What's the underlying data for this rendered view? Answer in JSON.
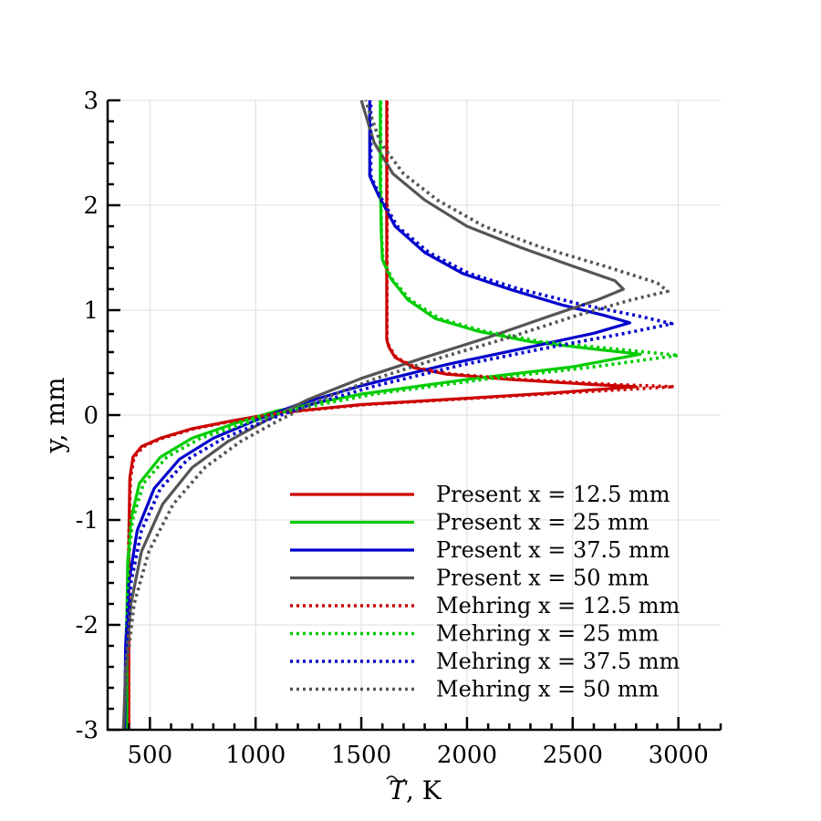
{
  "chart_data": {
    "type": "line",
    "title": "",
    "xlabel": "T̃, K",
    "xlabel_base": "T",
    "xlabel_unit": ", K",
    "ylabel": "y, mm",
    "xlim": [
      300,
      3200
    ],
    "ylim": [
      -3,
      3
    ],
    "xticks": [
      500,
      1000,
      1500,
      2000,
      2500,
      3000
    ],
    "xtick_labels": [
      "500",
      "1000",
      "1500",
      "2000",
      "2500",
      "3000"
    ],
    "yticks": [
      -3,
      -2,
      -1,
      0,
      1,
      2,
      3
    ],
    "ytick_labels": [
      "-3",
      "-2",
      "-1",
      "0",
      "1",
      "2",
      "3"
    ],
    "grid": true,
    "legend_position": "bottom-right",
    "series": [
      {
        "name": "Present x = 12.5 mm",
        "color": "#cc0000",
        "style": "solid",
        "points": [
          [
            400,
            -3
          ],
          [
            400,
            -2
          ],
          [
            400,
            -1.2
          ],
          [
            405,
            -0.6
          ],
          [
            420,
            -0.4
          ],
          [
            460,
            -0.3
          ],
          [
            550,
            -0.22
          ],
          [
            700,
            -0.13
          ],
          [
            900,
            -0.05
          ],
          [
            1100,
            0.02
          ],
          [
            1500,
            0.1
          ],
          [
            2000,
            0.16
          ],
          [
            2400,
            0.21
          ],
          [
            2800,
            0.27
          ],
          [
            2600,
            0.29
          ],
          [
            2200,
            0.34
          ],
          [
            1900,
            0.39
          ],
          [
            1750,
            0.45
          ],
          [
            1660,
            0.55
          ],
          [
            1630,
            0.65
          ],
          [
            1620,
            0.72
          ],
          [
            1620,
            1
          ],
          [
            1620,
            2
          ],
          [
            1620,
            3
          ]
        ]
      },
      {
        "name": "Present x = 25 mm",
        "color": "#00cc00",
        "style": "solid",
        "points": [
          [
            390,
            -3
          ],
          [
            390,
            -2
          ],
          [
            395,
            -1.4
          ],
          [
            410,
            -1
          ],
          [
            450,
            -0.65
          ],
          [
            550,
            -0.4
          ],
          [
            700,
            -0.22
          ],
          [
            900,
            -0.08
          ],
          [
            1100,
            0.04
          ],
          [
            1500,
            0.2
          ],
          [
            2000,
            0.34
          ],
          [
            2500,
            0.46
          ],
          [
            2820,
            0.58
          ],
          [
            2600,
            0.63
          ],
          [
            2300,
            0.7
          ],
          [
            2050,
            0.8
          ],
          [
            1850,
            0.92
          ],
          [
            1720,
            1.1
          ],
          [
            1640,
            1.3
          ],
          [
            1600,
            1.48
          ],
          [
            1595,
            1.7
          ],
          [
            1590,
            2.2
          ],
          [
            1590,
            3
          ]
        ]
      },
      {
        "name": "Present x = 37.5 mm",
        "color": "#0000cc",
        "style": "solid",
        "points": [
          [
            380,
            -3
          ],
          [
            385,
            -2.2
          ],
          [
            400,
            -1.6
          ],
          [
            440,
            -1.1
          ],
          [
            520,
            -0.7
          ],
          [
            640,
            -0.42
          ],
          [
            800,
            -0.22
          ],
          [
            1000,
            -0.05
          ],
          [
            1200,
            0.1
          ],
          [
            1500,
            0.28
          ],
          [
            1900,
            0.48
          ],
          [
            2300,
            0.65
          ],
          [
            2600,
            0.78
          ],
          [
            2770,
            0.88
          ],
          [
            2650,
            0.95
          ],
          [
            2450,
            1.05
          ],
          [
            2200,
            1.2
          ],
          [
            1980,
            1.35
          ],
          [
            1800,
            1.55
          ],
          [
            1660,
            1.8
          ],
          [
            1580,
            2.1
          ],
          [
            1540,
            2.28
          ],
          [
            1540,
            2.5
          ],
          [
            1540,
            3
          ]
        ]
      },
      {
        "name": "Present x = 50 mm",
        "color": "#555555",
        "style": "solid",
        "points": [
          [
            375,
            -3
          ],
          [
            385,
            -2.4
          ],
          [
            410,
            -1.8
          ],
          [
            460,
            -1.3
          ],
          [
            560,
            -0.85
          ],
          [
            700,
            -0.5
          ],
          [
            870,
            -0.25
          ],
          [
            1050,
            -0.05
          ],
          [
            1250,
            0.15
          ],
          [
            1500,
            0.35
          ],
          [
            1800,
            0.55
          ],
          [
            2100,
            0.74
          ],
          [
            2400,
            0.95
          ],
          [
            2620,
            1.1
          ],
          [
            2740,
            1.2
          ],
          [
            2700,
            1.28
          ],
          [
            2500,
            1.42
          ],
          [
            2250,
            1.6
          ],
          [
            2000,
            1.8
          ],
          [
            1800,
            2.05
          ],
          [
            1650,
            2.3
          ],
          [
            1560,
            2.6
          ],
          [
            1500,
            3
          ]
        ]
      },
      {
        "name": "Mehring x = 12.5 mm",
        "color": "#cc0000",
        "style": "dotted",
        "points": [
          [
            400,
            -3
          ],
          [
            400,
            -2
          ],
          [
            400,
            -1.2
          ],
          [
            408,
            -0.6
          ],
          [
            425,
            -0.4
          ],
          [
            470,
            -0.3
          ],
          [
            560,
            -0.22
          ],
          [
            710,
            -0.13
          ],
          [
            910,
            -0.05
          ],
          [
            1110,
            0.02
          ],
          [
            1520,
            0.1
          ],
          [
            2030,
            0.16
          ],
          [
            2450,
            0.21
          ],
          [
            2980,
            0.27
          ],
          [
            2700,
            0.29
          ],
          [
            2250,
            0.34
          ],
          [
            1930,
            0.39
          ],
          [
            1760,
            0.45
          ],
          [
            1665,
            0.55
          ],
          [
            1632,
            0.65
          ],
          [
            1622,
            0.72
          ],
          [
            1622,
            1
          ],
          [
            1622,
            2
          ],
          [
            1622,
            3
          ]
        ]
      },
      {
        "name": "Mehring x = 25 mm",
        "color": "#00cc00",
        "style": "dotted",
        "points": [
          [
            390,
            -3
          ],
          [
            392,
            -2
          ],
          [
            398,
            -1.4
          ],
          [
            418,
            -1
          ],
          [
            470,
            -0.65
          ],
          [
            580,
            -0.4
          ],
          [
            740,
            -0.22
          ],
          [
            950,
            -0.08
          ],
          [
            1150,
            0.04
          ],
          [
            1560,
            0.2
          ],
          [
            2080,
            0.34
          ],
          [
            2600,
            0.46
          ],
          [
            3000,
            0.57
          ],
          [
            2700,
            0.63
          ],
          [
            2350,
            0.7
          ],
          [
            2080,
            0.8
          ],
          [
            1870,
            0.92
          ],
          [
            1730,
            1.1
          ],
          [
            1645,
            1.3
          ],
          [
            1602,
            1.48
          ],
          [
            1596,
            1.7
          ],
          [
            1592,
            2.2
          ],
          [
            1592,
            3
          ]
        ]
      },
      {
        "name": "Mehring x = 37.5 mm",
        "color": "#0000cc",
        "style": "dotted",
        "points": [
          [
            380,
            -3
          ],
          [
            390,
            -2.2
          ],
          [
            410,
            -1.6
          ],
          [
            460,
            -1.1
          ],
          [
            550,
            -0.7
          ],
          [
            680,
            -0.42
          ],
          [
            850,
            -0.22
          ],
          [
            1050,
            -0.05
          ],
          [
            1260,
            0.1
          ],
          [
            1570,
            0.28
          ],
          [
            1980,
            0.48
          ],
          [
            2400,
            0.65
          ],
          [
            2750,
            0.78
          ],
          [
            2970,
            0.87
          ],
          [
            2800,
            0.95
          ],
          [
            2550,
            1.05
          ],
          [
            2250,
            1.2
          ],
          [
            2010,
            1.35
          ],
          [
            1820,
            1.55
          ],
          [
            1670,
            1.8
          ],
          [
            1585,
            2.1
          ],
          [
            1545,
            2.28
          ],
          [
            1545,
            3
          ]
        ]
      },
      {
        "name": "Mehring x = 50 mm",
        "color": "#555555",
        "style": "dotted",
        "points": [
          [
            375,
            -3
          ],
          [
            390,
            -2.4
          ],
          [
            425,
            -1.8
          ],
          [
            495,
            -1.3
          ],
          [
            610,
            -0.85
          ],
          [
            760,
            -0.5
          ],
          [
            930,
            -0.25
          ],
          [
            1110,
            -0.05
          ],
          [
            1310,
            0.15
          ],
          [
            1570,
            0.35
          ],
          [
            1880,
            0.55
          ],
          [
            2200,
            0.74
          ],
          [
            2520,
            0.95
          ],
          [
            2780,
            1.1
          ],
          [
            2950,
            1.18
          ],
          [
            2900,
            1.26
          ],
          [
            2650,
            1.42
          ],
          [
            2350,
            1.6
          ],
          [
            2080,
            1.8
          ],
          [
            1860,
            2.05
          ],
          [
            1700,
            2.3
          ],
          [
            1590,
            2.6
          ],
          [
            1520,
            3
          ]
        ]
      }
    ]
  }
}
